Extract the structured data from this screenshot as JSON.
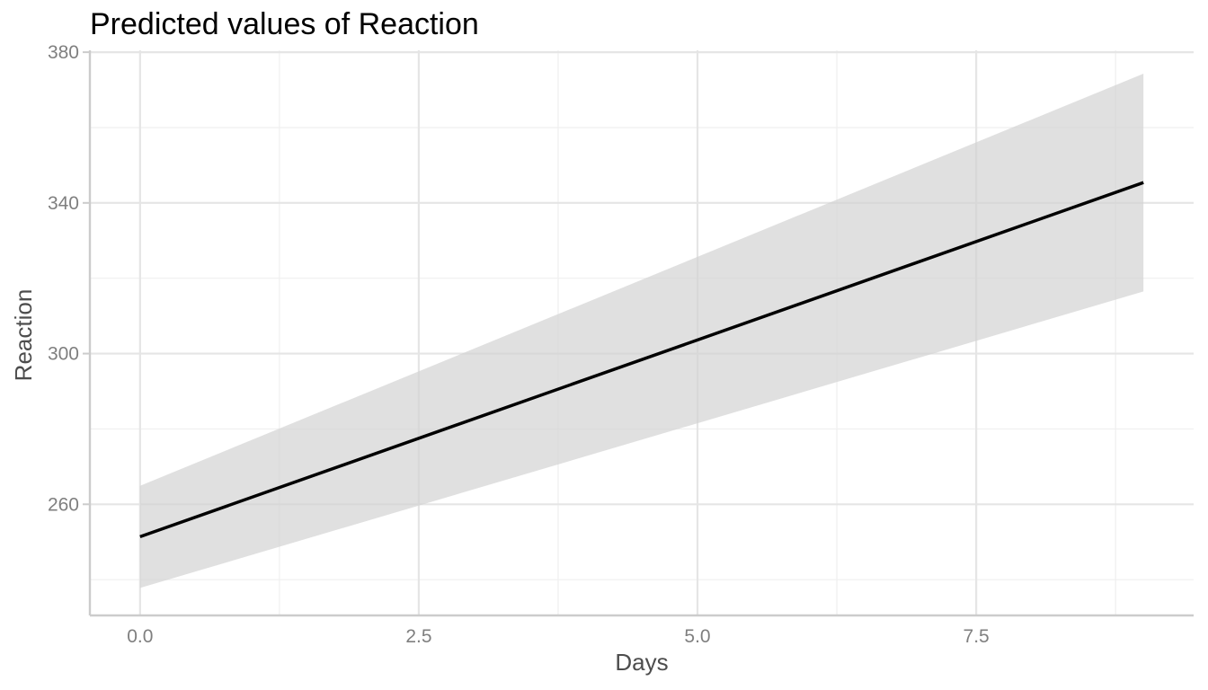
{
  "chart_data": {
    "type": "line",
    "title": "Predicted values of Reaction",
    "xlabel": "Days",
    "ylabel": "Reaction",
    "xlim": [
      -0.45,
      9.45
    ],
    "ylim": [
      230.5,
      380.5
    ],
    "x_ticks": [
      0.0,
      2.5,
      5.0,
      7.5
    ],
    "x_tick_labels": [
      "0.0",
      "2.5",
      "5.0",
      "7.5"
    ],
    "y_ticks": [
      260,
      300,
      340,
      380
    ],
    "y_tick_labels": [
      "260",
      "300",
      "340",
      "380"
    ],
    "grid": true,
    "legend": "none",
    "series": [
      {
        "x": [
          0,
          9
        ],
        "y": [
          251.4,
          345.4
        ],
        "ci_low": [
          237.8,
          316.5
        ],
        "ci_high": [
          264.9,
          374.3
        ],
        "line_color": "#000000",
        "ribbon_color": "#d3d3d3"
      }
    ]
  }
}
